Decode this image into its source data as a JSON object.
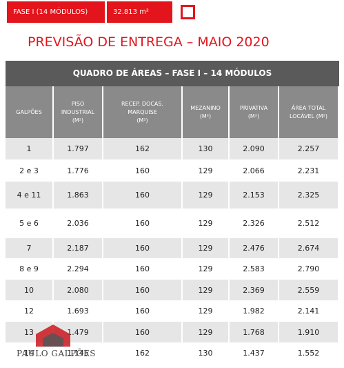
{
  "top_bar": {
    "phase": "FASE I (14 MÓDULOS)",
    "area": "32.813 m²"
  },
  "title": "PREVISÃO DE ENTREGA – MAIO 2020",
  "table": {
    "caption": "QUADRO DE ÁREAS – FASE I – 14 MÓDULOS",
    "headers": [
      [
        "GALPÕES"
      ],
      [
        "PISO",
        "INDUSTRIAL",
        "(M²)"
      ],
      [
        "RECEP. DOCAS.",
        "MARQUISE",
        "(M²)"
      ],
      [
        "MEZANINO",
        "(M²)"
      ],
      [
        "PRIVATIVA",
        "(M²)"
      ],
      [
        "ÁREA TOTAL",
        "LOCÁVEL (M²)"
      ]
    ],
    "rows": [
      [
        "1",
        "1.797",
        "162",
        "130",
        "2.090",
        "2.257"
      ],
      [
        "2 e 3",
        "1.776",
        "160",
        "129",
        "2.066",
        "2.231"
      ],
      [
        "4 e 11",
        "1.863",
        "160",
        "129",
        "2.153",
        "2.325"
      ],
      [
        "5 e 6",
        "2.036",
        "160",
        "129",
        "2.326",
        "2.512"
      ],
      [
        "7",
        "2.187",
        "160",
        "129",
        "2.476",
        "2.674"
      ],
      [
        "8 e 9",
        "2.294",
        "160",
        "129",
        "2.583",
        "2.790"
      ],
      [
        "10",
        "2.080",
        "160",
        "129",
        "2.369",
        "2.559"
      ],
      [
        "12",
        "1.693",
        "160",
        "129",
        "1.982",
        "2.141"
      ],
      [
        "13",
        "1.479",
        "160",
        "129",
        "1.768",
        "1.910"
      ],
      [
        "14",
        "1.145",
        "162",
        "130",
        "1.437",
        "1.552"
      ]
    ]
  },
  "watermark": "PAULO GALPÕES"
}
